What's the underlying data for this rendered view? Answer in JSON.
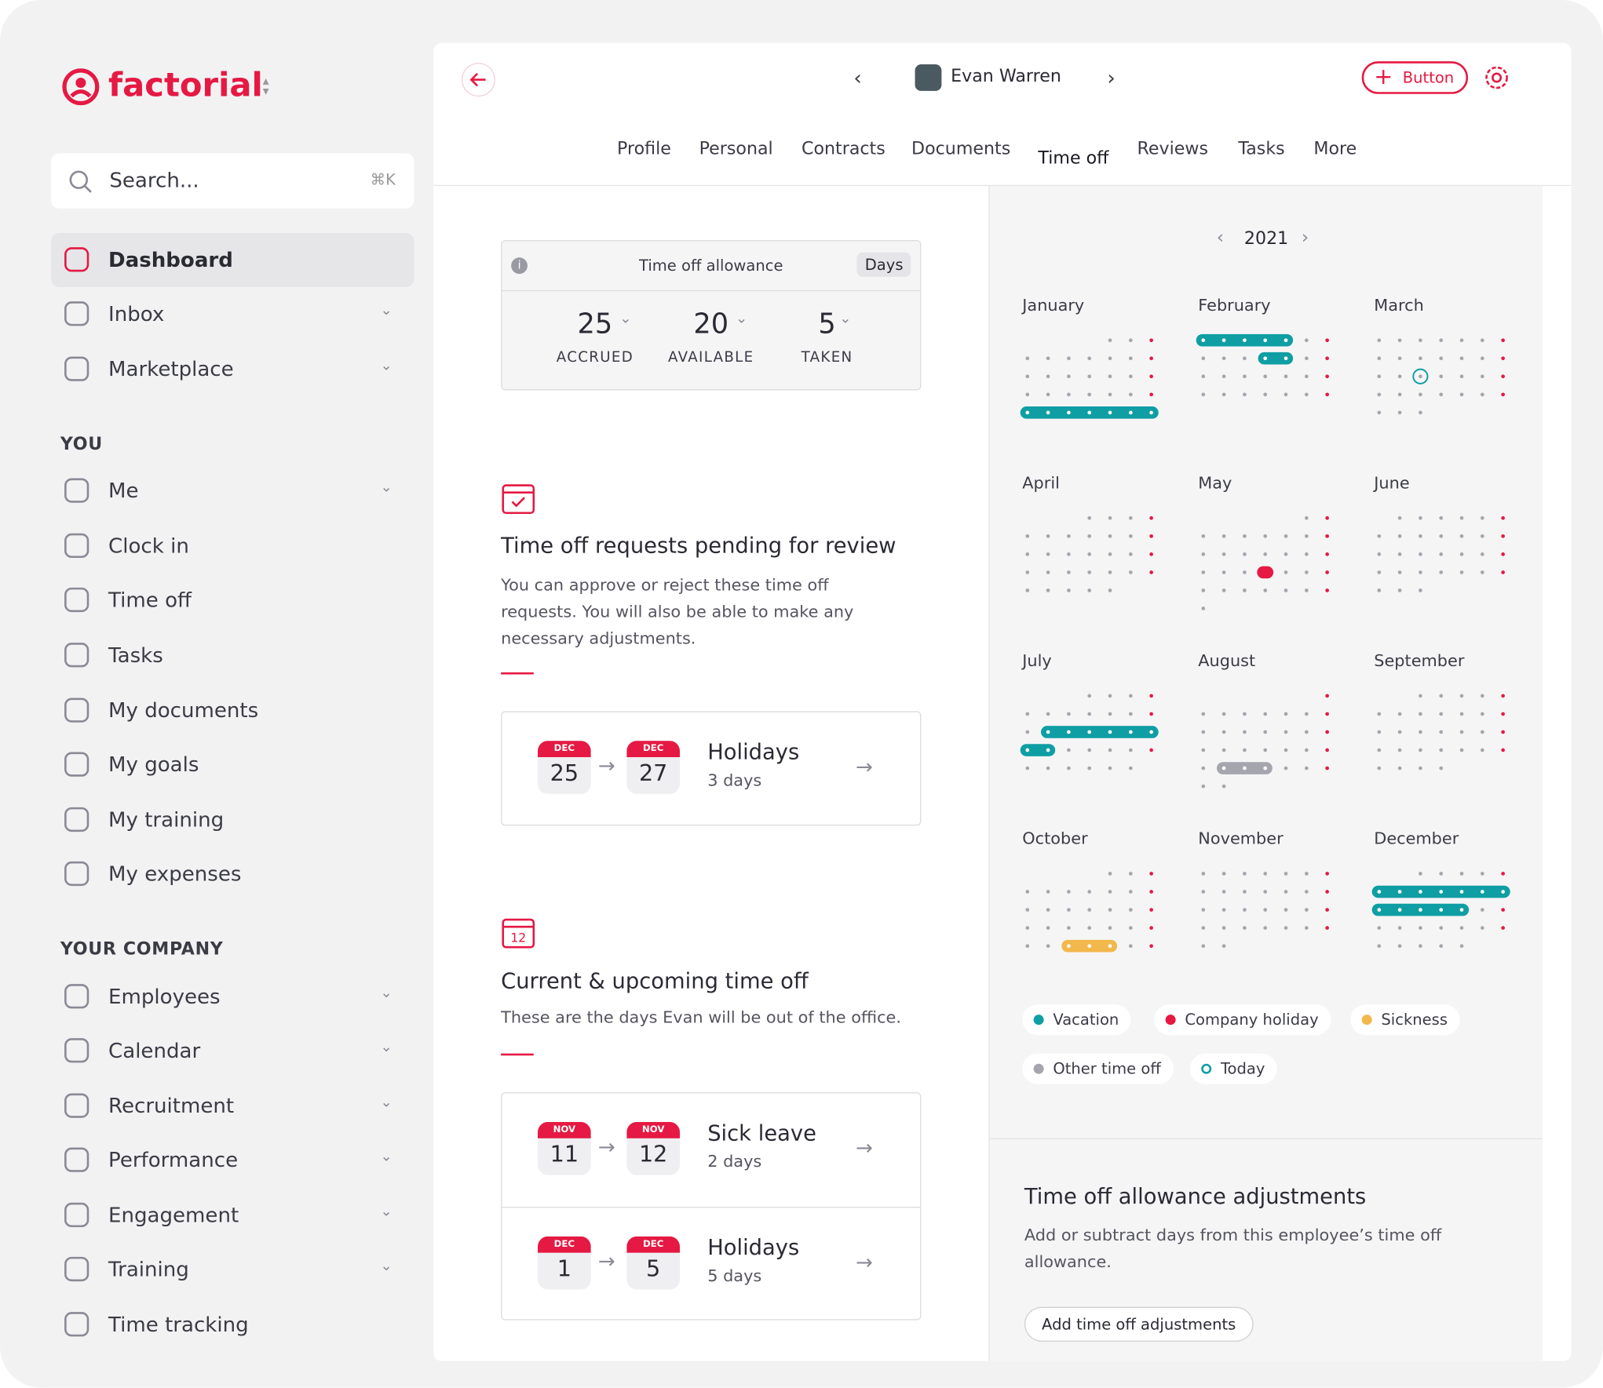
{
  "sidebar": {
    "brand": "factorial",
    "search": {
      "placeholder": "Search...",
      "shortcut": "⌘K"
    },
    "nav": [
      {
        "label": "Dashboard",
        "expandable": false
      },
      {
        "label": "Inbox",
        "expandable": true
      },
      {
        "label": "Marketplace",
        "expandable": true
      }
    ],
    "you_heading": "YOU",
    "you": [
      {
        "label": "Me",
        "expandable": true
      },
      {
        "label": "Clock in",
        "expandable": false
      },
      {
        "label": "Time off",
        "expandable": false
      },
      {
        "label": "Tasks",
        "expandable": false
      },
      {
        "label": "My documents",
        "expandable": false
      },
      {
        "label": "My goals",
        "expandable": false
      },
      {
        "label": "My training",
        "expandable": false
      },
      {
        "label": "My expenses",
        "expandable": false
      }
    ],
    "company_heading": "YOUR COMPANY",
    "company": [
      {
        "label": "Employees",
        "expandable": true
      },
      {
        "label": "Calendar",
        "expandable": true
      },
      {
        "label": "Recruitment",
        "expandable": true
      },
      {
        "label": "Performance",
        "expandable": true
      },
      {
        "label": "Engagement",
        "expandable": true
      },
      {
        "label": "Training",
        "expandable": true
      },
      {
        "label": "Time tracking",
        "expandable": false
      }
    ]
  },
  "header": {
    "employee": "Evan Warren",
    "button": "Button",
    "tabs": [
      "Profile",
      "Personal",
      "Contracts",
      "Documents",
      "Time off",
      "Reviews",
      "Tasks",
      "More"
    ],
    "active_tab": "Time off"
  },
  "allowance": {
    "title": "Time off allowance",
    "unit": "Days",
    "stats": [
      {
        "value": "25",
        "label": "ACCRUED"
      },
      {
        "value": "20",
        "label": "AVAILABLE"
      },
      {
        "value": "5",
        "label": "TAKEN"
      }
    ]
  },
  "pending": {
    "title": "Time off requests pending for review",
    "text": "You can approve or reject these time off requests. You will also be able to make any necessary adjustments.",
    "requests": [
      {
        "from": {
          "month": "DEC",
          "day": "25"
        },
        "to": {
          "month": "DEC",
          "day": "27"
        },
        "type": "Holidays",
        "duration": "3 days"
      }
    ]
  },
  "upcoming": {
    "title": "Current & upcoming time off",
    "text": "These are the days Evan will be out of the office.",
    "requests": [
      {
        "from": {
          "month": "NOV",
          "day": "11"
        },
        "to": {
          "month": "NOV",
          "day": "12"
        },
        "type": "Sick leave",
        "duration": "2 days"
      },
      {
        "from": {
          "month": "DEC",
          "day": "1"
        },
        "to": {
          "month": "DEC",
          "day": "5"
        },
        "type": "Holidays",
        "duration": "5 days"
      }
    ]
  },
  "calendar": {
    "year": "2021",
    "months": [
      "January",
      "February",
      "March",
      "April",
      "May",
      "June",
      "July",
      "August",
      "September",
      "October",
      "November",
      "December"
    ],
    "legend": [
      {
        "label": "Vacation",
        "color": "#0f9ea4"
      },
      {
        "label": "Company holiday",
        "color": "#e51943"
      },
      {
        "label": "Sickness",
        "color": "#f2b84b"
      },
      {
        "label": "Other time off",
        "color": "#a5a5ad"
      },
      {
        "label": "Today",
        "color": "#0f9ea4",
        "ring": true
      }
    ]
  },
  "adjustments": {
    "title": "Time off allowance adjustments",
    "text": "Add or subtract days from this employee’s time off allowance.",
    "button": "Add time off adjustments"
  }
}
